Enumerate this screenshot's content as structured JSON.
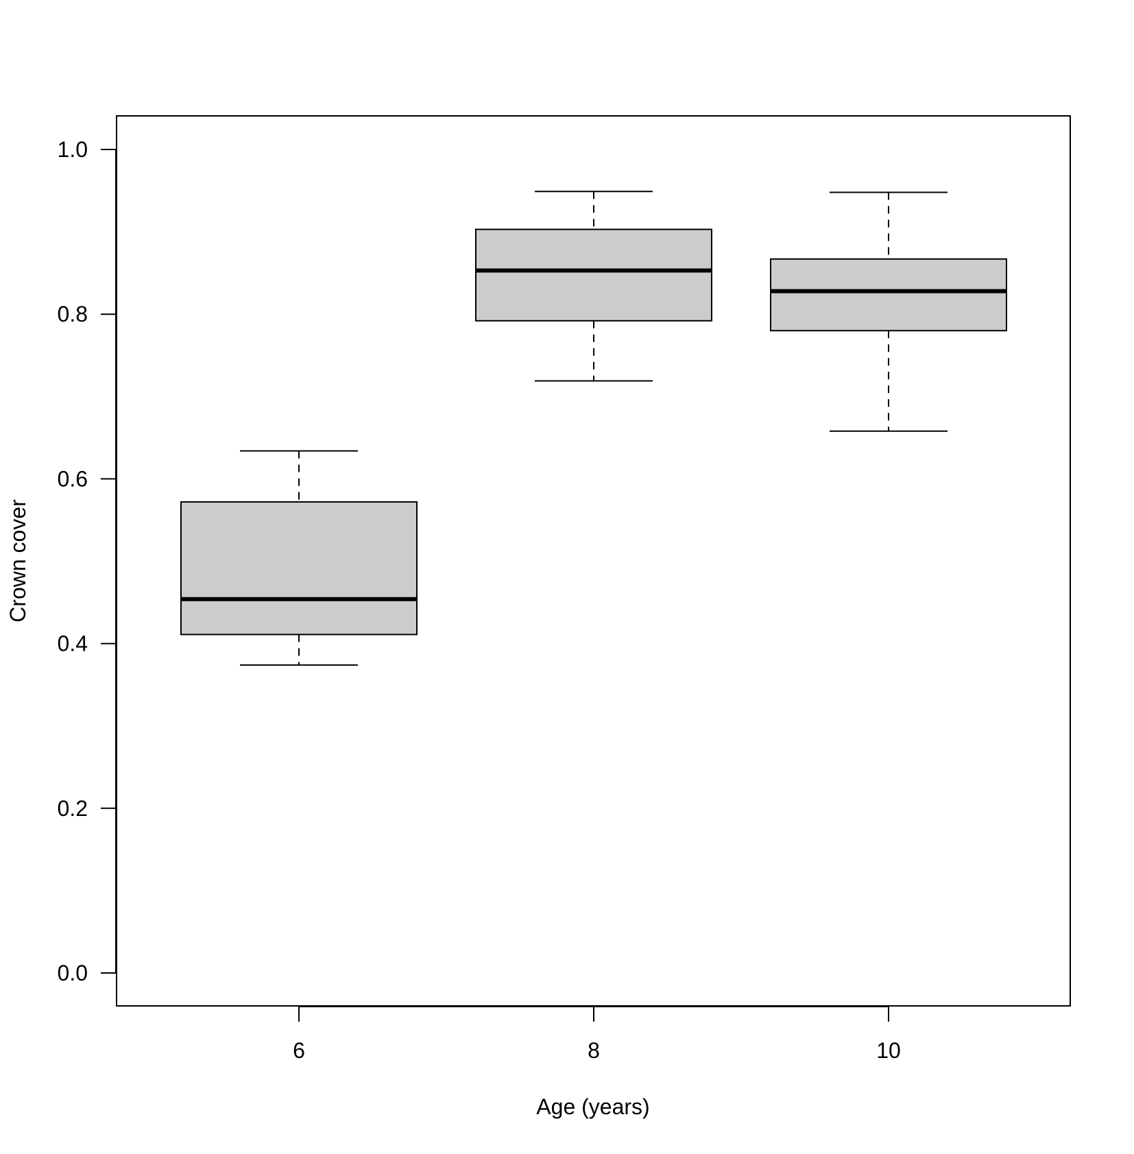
{
  "chart_data": {
    "type": "box",
    "xlabel": "Age (years)",
    "ylabel": "Crown cover",
    "ylim": [
      -0.04,
      1.04
    ],
    "yticks": [
      "0.0",
      "0.2",
      "0.4",
      "0.6",
      "0.8",
      "1.0"
    ],
    "categories": [
      "6",
      "8",
      "10"
    ],
    "boxes": [
      {
        "category": "6",
        "whisker_low": 0.374,
        "q1": 0.411,
        "median": 0.454,
        "q3": 0.572,
        "whisker_high": 0.634
      },
      {
        "category": "8",
        "whisker_low": 0.719,
        "q1": 0.792,
        "median": 0.853,
        "q3": 0.903,
        "whisker_high": 0.949
      },
      {
        "category": "10",
        "whisker_low": 0.658,
        "q1": 0.78,
        "median": 0.828,
        "q3": 0.867,
        "whisker_high": 0.948
      }
    ],
    "box_fill": "#cccccc",
    "line_color": "#000000",
    "grid": false,
    "legend": "none"
  }
}
